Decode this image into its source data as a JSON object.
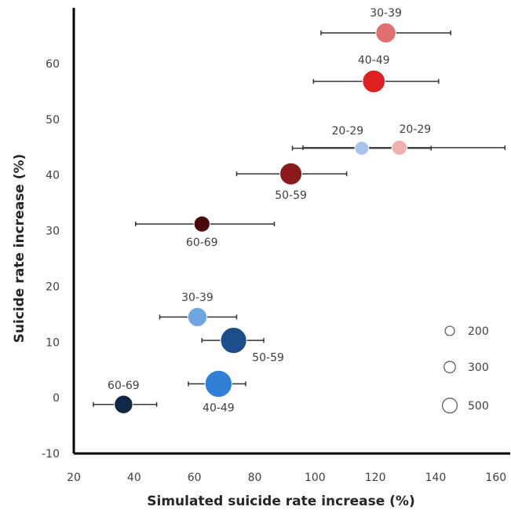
{
  "chart_data": {
    "type": "scatter",
    "xlabel": "Simulated suicide rate increase (%)",
    "ylabel": "Suicide rate increase (%)",
    "xlim": [
      20,
      165
    ],
    "ylim": [
      -10,
      70
    ],
    "xticks": [
      20,
      40,
      60,
      80,
      100,
      120,
      140,
      160
    ],
    "yticks": [
      -10,
      0,
      10,
      20,
      30,
      40,
      50,
      60
    ],
    "grid": false,
    "points": [
      {
        "label": "30-39",
        "x": 123.5,
        "y": 65.5,
        "xerr_low": 102,
        "xerr_high": 145,
        "size": 330,
        "color": "#e07070",
        "label_pos": "above"
      },
      {
        "label": "40-49",
        "x": 119.5,
        "y": 56.8,
        "xerr_low": 99.5,
        "xerr_high": 141,
        "size": 420,
        "color": "#dd2020",
        "label_pos": "above"
      },
      {
        "label": "20-29",
        "x": 115.5,
        "y": 44.8,
        "xerr_low": 92.5,
        "xerr_high": 138.5,
        "size": 160,
        "color": "#a8c4ec",
        "label_pos": "above-left"
      },
      {
        "label": "20-29",
        "x": 128,
        "y": 44.9,
        "xerr_low": 96,
        "xerr_high": 163,
        "size": 190,
        "color": "#f0b0b0",
        "label_pos": "above-right"
      },
      {
        "label": "50-59",
        "x": 92,
        "y": 40.2,
        "xerr_low": 74,
        "xerr_high": 110.5,
        "size": 400,
        "color": "#8b1a1a",
        "label_pos": "below"
      },
      {
        "label": "60-69",
        "x": 62.5,
        "y": 31.2,
        "xerr_low": 40.5,
        "xerr_high": 86.5,
        "size": 210,
        "color": "#4a0808",
        "label_pos": "below"
      },
      {
        "label": "30-39",
        "x": 61,
        "y": 14.5,
        "xerr_low": 48.5,
        "xerr_high": 74,
        "size": 300,
        "color": "#6ea6e2",
        "label_pos": "above"
      },
      {
        "label": "50-59",
        "x": 73,
        "y": 10.3,
        "xerr_low": 62.5,
        "xerr_high": 83,
        "size": 560,
        "color": "#1c4e8c",
        "label_pos": "below-right"
      },
      {
        "label": "40-49",
        "x": 68,
        "y": 2.5,
        "xerr_low": 58,
        "xerr_high": 77,
        "size": 600,
        "color": "#2f7fd6",
        "label_pos": "below"
      },
      {
        "label": "60-69",
        "x": 36.5,
        "y": -1.2,
        "xerr_low": 26.5,
        "xerr_high": 47.5,
        "size": 280,
        "color": "#0e2846",
        "label_pos": "above"
      }
    ],
    "size_legend": {
      "placement": "bottom-right",
      "entries": [
        {
          "label": "200",
          "size": 200
        },
        {
          "label": "300",
          "size": 300
        },
        {
          "label": "500",
          "size": 500
        }
      ]
    }
  }
}
